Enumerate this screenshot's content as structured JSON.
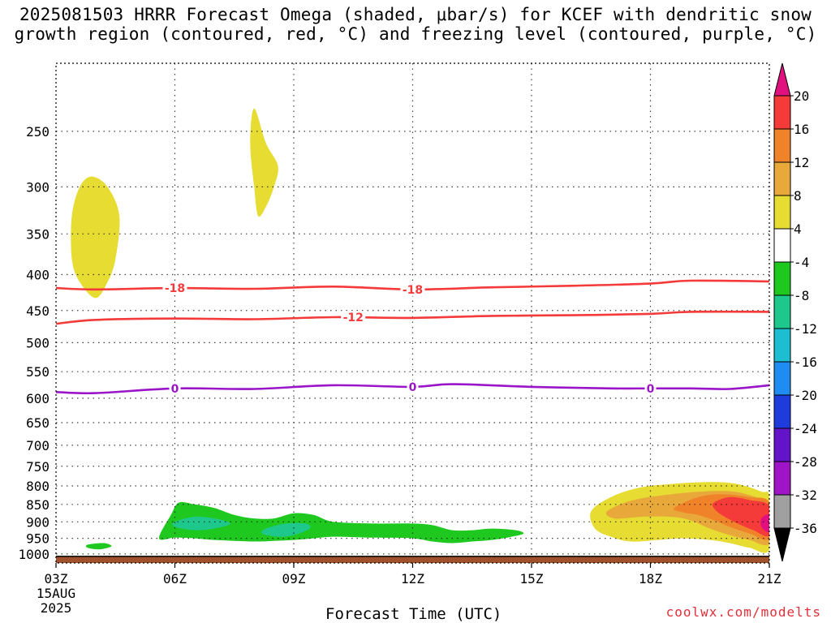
{
  "header": {
    "title_line1": "2025081503 HRRR Forecast Omega (shaded, μbar/s) for KCEF with dendritic snow",
    "title_line2": "growth region (contoured, red, °C) and freezing level (contoured, purple, °C)"
  },
  "footer": {
    "credit": "coolwx.com/modelts",
    "date_day": "15AUG",
    "date_year": "2025"
  },
  "chart_data": {
    "type": "contour",
    "xlabel": "Forecast Time (UTC)",
    "ylabel": "",
    "x_ticks": [
      "03Z",
      "06Z",
      "09Z",
      "12Z",
      "15Z",
      "18Z",
      "21Z"
    ],
    "x_hours": [
      3,
      6,
      9,
      12,
      15,
      18,
      21
    ],
    "xlim": [
      3,
      21
    ],
    "y_ticks": [
      250,
      300,
      350,
      400,
      450,
      500,
      550,
      600,
      650,
      700,
      750,
      800,
      850,
      900,
      950,
      1000
    ],
    "ylim": [
      200,
      1030
    ],
    "y_scale": "log-pressure (inverted)",
    "grid": true,
    "colorbar": {
      "levels": [
        20,
        16,
        12,
        8,
        4,
        -4,
        -8,
        -12,
        -16,
        -20,
        -24,
        -28,
        -32,
        -36
      ],
      "label_values": [
        "20",
        "16",
        "12",
        "8",
        "4",
        "-4",
        "-8",
        "-12",
        "-16",
        "-20",
        "-24",
        "-28",
        "-32",
        "-36"
      ],
      "bands": [
        {
          "range": "> 20",
          "color": "#e0117f"
        },
        {
          "range": "16 to 20",
          "color": "#f53a3a"
        },
        {
          "range": "12 to 16",
          "color": "#f0822a"
        },
        {
          "range": "8 to 12",
          "color": "#e8a83a"
        },
        {
          "range": "4 to 8",
          "color": "#e6dc32"
        },
        {
          "range": "-4 to 4",
          "color": "#ffffff"
        },
        {
          "range": "-8 to -4",
          "color": "#1ec81e"
        },
        {
          "range": "-12 to -8",
          "color": "#1ec88c"
        },
        {
          "range": "-16 to -12",
          "color": "#1ebed2"
        },
        {
          "range": "-20 to -16",
          "color": "#1e8cf0"
        },
        {
          "range": "-24 to -20",
          "color": "#1e3cdc"
        },
        {
          "range": "-28 to -24",
          "color": "#6414c8"
        },
        {
          "range": "-32 to -28",
          "color": "#a014c8"
        },
        {
          "range": "-36 to -32",
          "color": "#a0a0a0"
        },
        {
          "range": "< -36",
          "color": "#000000"
        }
      ]
    },
    "contours": [
      {
        "name": "-18",
        "color": "#f53a3a",
        "label_hours": [
          6,
          12
        ],
        "points": [
          [
            3,
            418
          ],
          [
            4,
            420
          ],
          [
            6,
            418
          ],
          [
            8,
            419
          ],
          [
            10,
            416
          ],
          [
            12,
            420
          ],
          [
            14,
            417
          ],
          [
            16,
            415
          ],
          [
            18,
            412
          ],
          [
            19,
            408
          ],
          [
            21,
            409
          ]
        ]
      },
      {
        "name": "-12",
        "color": "#f53a3a",
        "label_hours": [
          10.5
        ],
        "points": [
          [
            3,
            470
          ],
          [
            4,
            464
          ],
          [
            6,
            462
          ],
          [
            8,
            463
          ],
          [
            10,
            460
          ],
          [
            12,
            461
          ],
          [
            14,
            458
          ],
          [
            16,
            457
          ],
          [
            18,
            455
          ],
          [
            19,
            452
          ],
          [
            21,
            452
          ]
        ]
      },
      {
        "name": "0",
        "color": "#9a14c8",
        "label_hours": [
          6,
          12,
          18
        ],
        "points": [
          [
            3,
            588
          ],
          [
            4,
            590
          ],
          [
            6,
            581
          ],
          [
            8,
            582
          ],
          [
            10,
            575
          ],
          [
            12,
            578
          ],
          [
            13,
            573
          ],
          [
            15,
            578
          ],
          [
            17,
            581
          ],
          [
            18,
            581
          ],
          [
            19,
            581
          ],
          [
            20,
            582
          ],
          [
            21,
            575
          ]
        ]
      }
    ],
    "shaded_regions": [
      {
        "value_band": "4 to 8",
        "color": "#e6dc32",
        "points": [
          [
            3.9,
            290
          ],
          [
            4.3,
            300
          ],
          [
            4.6,
            330
          ],
          [
            4.5,
            380
          ],
          [
            4.3,
            410
          ],
          [
            4.0,
            432
          ],
          [
            3.6,
            410
          ],
          [
            3.4,
            380
          ],
          [
            3.4,
            330
          ],
          [
            3.6,
            300
          ]
        ]
      },
      {
        "value_band": "4 to 8",
        "color": "#e6dc32",
        "points": [
          [
            8.0,
            232
          ],
          [
            8.3,
            260
          ],
          [
            8.6,
            280
          ],
          [
            8.5,
            300
          ],
          [
            8.3,
            320
          ],
          [
            8.1,
            330
          ],
          [
            8.0,
            300
          ],
          [
            7.9,
            260
          ]
        ]
      },
      {
        "value_band": "-8 to -4",
        "color": "#1ec81e",
        "points": [
          [
            5.6,
            950
          ],
          [
            5.9,
            880
          ],
          [
            6.1,
            845
          ],
          [
            6.5,
            850
          ],
          [
            7.0,
            860
          ],
          [
            7.5,
            880
          ],
          [
            8.0,
            890
          ],
          [
            8.5,
            890
          ],
          [
            9.0,
            875
          ],
          [
            9.5,
            880
          ],
          [
            10.0,
            900
          ],
          [
            11,
            905
          ],
          [
            12,
            905
          ],
          [
            12.5,
            910
          ],
          [
            13.0,
            925
          ],
          [
            13.5,
            925
          ],
          [
            14.0,
            920
          ],
          [
            14.6,
            925
          ],
          [
            14.8,
            935
          ],
          [
            14.5,
            945
          ],
          [
            14,
            955
          ],
          [
            13.5,
            960
          ],
          [
            13,
            965
          ],
          [
            12.5,
            960
          ],
          [
            12,
            950
          ],
          [
            11,
            948
          ],
          [
            10,
            945
          ],
          [
            9.5,
            950
          ],
          [
            9,
            955
          ],
          [
            8.5,
            958
          ],
          [
            8,
            960
          ],
          [
            7,
            955
          ],
          [
            6.5,
            950
          ],
          [
            6,
            948
          ]
        ]
      },
      {
        "value_band": "-12 to -8",
        "color": "#1ec88c",
        "points": [
          [
            6.0,
            900
          ],
          [
            6.5,
            885
          ],
          [
            7.0,
            890
          ],
          [
            7.4,
            905
          ],
          [
            7.0,
            920
          ],
          [
            6.5,
            925
          ],
          [
            6.0,
            915
          ]
        ]
      },
      {
        "value_band": "-12 to -8",
        "color": "#1ec88c",
        "points": [
          [
            8.3,
            920
          ],
          [
            8.8,
            905
          ],
          [
            9.3,
            905
          ],
          [
            9.4,
            920
          ],
          [
            9.0,
            940
          ],
          [
            8.6,
            945
          ],
          [
            8.2,
            935
          ]
        ]
      },
      {
        "value_band": "-8 to -4",
        "color": "#1ec81e",
        "points": [
          [
            3.8,
            970
          ],
          [
            4.2,
            965
          ],
          [
            4.4,
            975
          ],
          [
            4.1,
            985
          ],
          [
            3.8,
            980
          ]
        ]
      },
      {
        "value_band": "4 to 8",
        "color": "#e6dc32",
        "points": [
          [
            16.5,
            870
          ],
          [
            17.0,
            830
          ],
          [
            17.7,
            805
          ],
          [
            18.5,
            795
          ],
          [
            19.5,
            790
          ],
          [
            20.2,
            795
          ],
          [
            20.8,
            815
          ],
          [
            21.0,
            830
          ],
          [
            21.0,
            985
          ],
          [
            20.5,
            980
          ],
          [
            20.0,
            965
          ],
          [
            19.5,
            955
          ],
          [
            18.8,
            950
          ],
          [
            18.2,
            955
          ],
          [
            17.5,
            960
          ],
          [
            17.0,
            945
          ],
          [
            16.6,
            920
          ]
        ]
      },
      {
        "value_band": "8 to 12",
        "color": "#e8a83a",
        "points": [
          [
            16.9,
            870
          ],
          [
            17.5,
            840
          ],
          [
            18.3,
            825
          ],
          [
            19.3,
            815
          ],
          [
            20.1,
            815
          ],
          [
            20.8,
            835
          ],
          [
            21.0,
            850
          ],
          [
            21.0,
            965
          ],
          [
            20.5,
            955
          ],
          [
            20.0,
            940
          ],
          [
            19.5,
            920
          ],
          [
            19.0,
            895
          ],
          [
            18.5,
            885
          ],
          [
            17.8,
            885
          ],
          [
            17.1,
            890
          ]
        ]
      },
      {
        "value_band": "12 to 16",
        "color": "#f0822a",
        "points": [
          [
            18.6,
            860
          ],
          [
            19.2,
            830
          ],
          [
            19.8,
            822
          ],
          [
            20.5,
            830
          ],
          [
            21.0,
            845
          ],
          [
            21.0,
            950
          ],
          [
            20.5,
            935
          ],
          [
            20.0,
            915
          ],
          [
            19.6,
            895
          ],
          [
            19.2,
            880
          ],
          [
            18.8,
            872
          ]
        ]
      },
      {
        "value_band": "16 to 20",
        "color": "#f53a3a",
        "points": [
          [
            19.6,
            845
          ],
          [
            20.0,
            830
          ],
          [
            20.5,
            838
          ],
          [
            21.0,
            855
          ],
          [
            21.0,
            940
          ],
          [
            20.6,
            925
          ],
          [
            20.2,
            905
          ],
          [
            19.8,
            880
          ],
          [
            19.6,
            860
          ]
        ]
      },
      {
        "value_band": "> 20",
        "color": "#e0117f",
        "points": [
          [
            20.8,
            890
          ],
          [
            21.0,
            880
          ],
          [
            21.0,
            930
          ],
          [
            20.8,
            915
          ]
        ]
      }
    ],
    "terrain_color": "#a0522d"
  }
}
